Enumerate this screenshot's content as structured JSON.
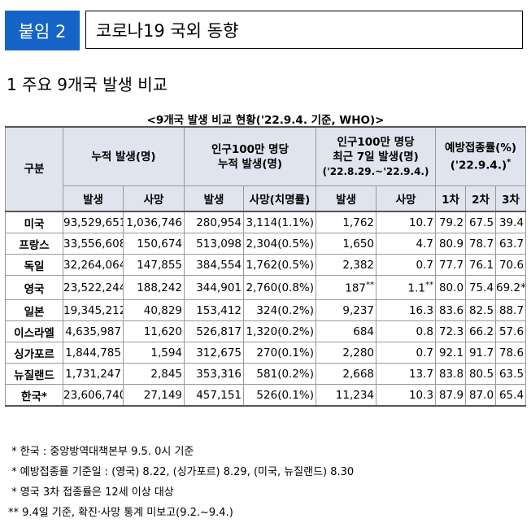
{
  "header": {
    "badge": "붙임 2",
    "title": "코로나19 국외 동향"
  },
  "section_heading": "1  주요 9개국 발생 비교",
  "table": {
    "title": "<9개국 발생 비교 현황('22.9.4. 기준, WHO)>",
    "col_headers": {
      "country": "구분",
      "cumulative": "누적 발생(명)",
      "per_million_cum_line1": "인구100만 명당",
      "per_million_cum_line2": "누적 발생(명)",
      "per_million_7d_line1": "인구100만 명당",
      "per_million_7d_line2": "최근 7일 발생(명)",
      "per_million_7d_line3": "('22.8.29.~'22.9.4.)",
      "vaccination_line1": "예방접종률(%)",
      "vaccination_line2": "('22.9.4.)",
      "vaccination_star": "*"
    },
    "sub_headers": [
      "발생",
      "사망",
      "발생",
      "사망(치명률)",
      "발생",
      "사망",
      "1차",
      "2차",
      "3차"
    ],
    "rows": [
      {
        "country": "미국",
        "cum_cases": "93,529,651",
        "cum_deaths": "1,036,746",
        "pm_cases": "280,954",
        "pm_deaths": "3,114(1.1%)",
        "w_cases": "1,762",
        "w_deaths": "10.7",
        "v1": "79.2",
        "v2": "67.5",
        "v3": "39.4"
      },
      {
        "country": "프랑스",
        "cum_cases": "33,556,608",
        "cum_deaths": "150,674",
        "pm_cases": "513,098",
        "pm_deaths": "2,304(0.5%)",
        "w_cases": "1,650",
        "w_deaths": "4.7",
        "v1": "80.9",
        "v2": "78.7",
        "v3": "63.7"
      },
      {
        "country": "독일",
        "cum_cases": "32,264,064",
        "cum_deaths": "147,855",
        "pm_cases": "384,554",
        "pm_deaths": "1,762(0.5%)",
        "w_cases": "2,382",
        "w_deaths": "0.7",
        "v1": "77.7",
        "v2": "76.1",
        "v3": "70.6"
      },
      {
        "country": "영국",
        "cum_cases": "23,522,244",
        "cum_deaths": "188,242",
        "pm_cases": "344,901",
        "pm_deaths": "2,760(0.8%)",
        "w_cases": "187",
        "w_cases_note": "**",
        "w_deaths": "1.1",
        "w_deaths_note": "**",
        "v1": "80.0",
        "v2": "75.4",
        "v3": "69.2*"
      },
      {
        "country": "일본",
        "cum_cases": "19,345,212",
        "cum_deaths": "40,829",
        "pm_cases": "153,412",
        "pm_deaths": "324(0.2%)",
        "w_cases": "9,237",
        "w_deaths": "16.3",
        "v1": "83.6",
        "v2": "82.5",
        "v3": "88.7"
      },
      {
        "country": "이스라엘",
        "cum_cases": "4,635,987",
        "cum_deaths": "11,620",
        "pm_cases": "526,817",
        "pm_deaths": "1,320(0.2%)",
        "w_cases": "684",
        "w_deaths": "0.8",
        "v1": "72.3",
        "v2": "66.2",
        "v3": "57.6"
      },
      {
        "country": "싱가포르",
        "cum_cases": "1,844,785",
        "cum_deaths": "1,594",
        "pm_cases": "312,675",
        "pm_deaths": "270(0.1%)",
        "w_cases": "2,280",
        "w_deaths": "0.7",
        "v1": "92.1",
        "v2": "91.7",
        "v3": "78.6"
      },
      {
        "country": "뉴질랜드",
        "cum_cases": "1,731,247",
        "cum_deaths": "2,845",
        "pm_cases": "353,316",
        "pm_deaths": "581(0.2%)",
        "w_cases": "2,668",
        "w_deaths": "13.7",
        "v1": "83.8",
        "v2": "80.5",
        "v3": "63.5"
      },
      {
        "country": "한국*",
        "cum_cases": "23,606,740",
        "cum_deaths": "27,149",
        "pm_cases": "457,151",
        "pm_deaths": "526(0.1%)",
        "w_cases": "11,234",
        "w_deaths": "10.3",
        "v1": "87.9",
        "v2": "87.0",
        "v3": "65.4"
      }
    ]
  },
  "footnotes": [
    " * 한국 : 중앙방역대책본부 9.5. 0시 기준",
    " * 예방접종률 기준일 : (영국) 8.22, (싱가포르) 8.29, (미국, 뉴질랜드) 8.30",
    " * 영국 3차 접종률은 12세 이상 대상",
    "** 9.4일 기준, 확진·사망 통계 미보고(9.2.~9.4.)"
  ]
}
